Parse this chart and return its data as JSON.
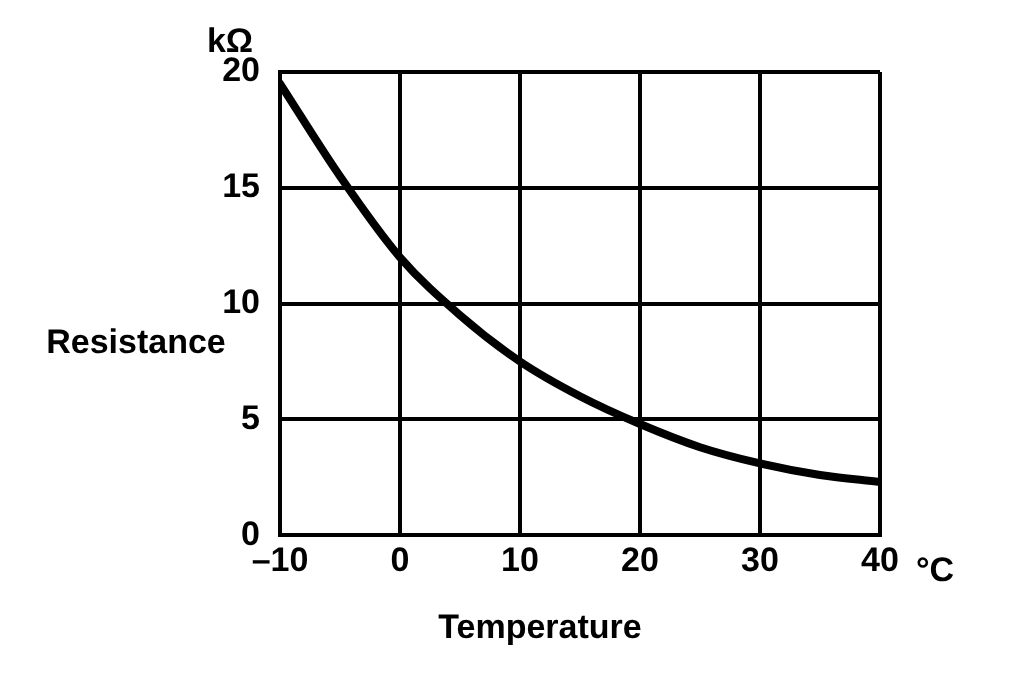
{
  "chart_data": {
    "type": "line",
    "xlabel": "Temperature",
    "ylabel": "Resistance",
    "annotations": [
      "kΩ",
      "°C"
    ],
    "x": [
      -10,
      -5,
      0,
      5,
      10,
      15,
      20,
      25,
      30,
      35,
      40
    ],
    "series": [
      {
        "color": "#000000",
        "values": [
          19.5,
          15.5,
          12,
          9.5,
          7.5,
          6,
          4.8,
          3.8,
          3.1,
          2.6,
          2.3
        ]
      }
    ],
    "xlim": [
      -10,
      40
    ],
    "xticks": [
      {
        "value": -10,
        "label": "–10"
      },
      0,
      10,
      20,
      30,
      40
    ],
    "ylim": [
      0,
      20
    ],
    "yticks": [
      0,
      5,
      10,
      15,
      20
    ],
    "grid": true,
    "legend": false,
    "marker": "none",
    "line_style": "solid"
  }
}
